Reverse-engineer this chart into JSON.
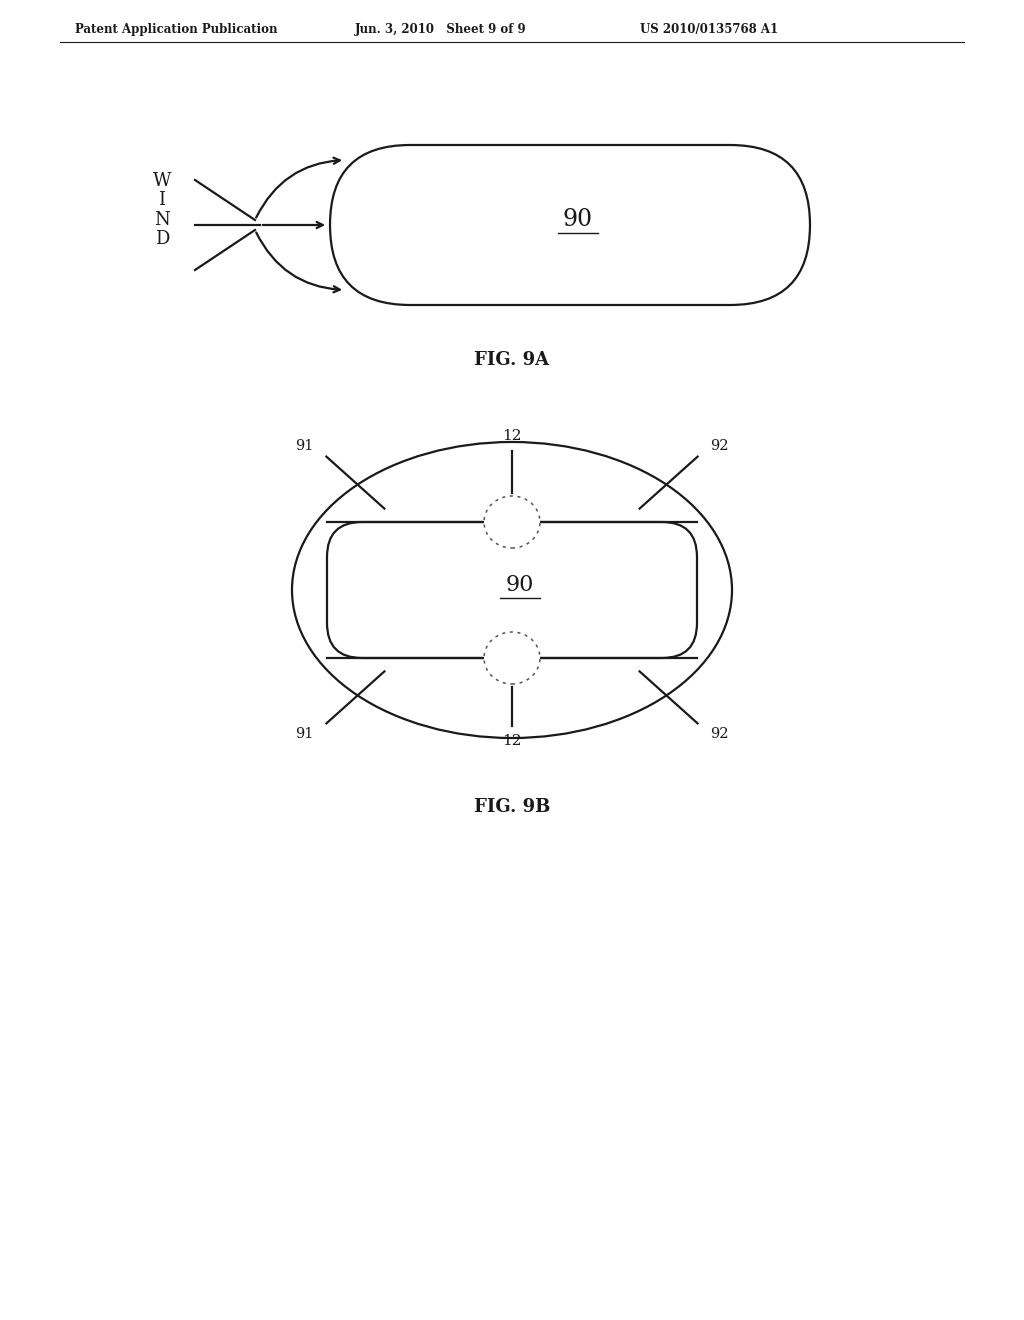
{
  "bg_color": "#ffffff",
  "line_color": "#1a1a1a",
  "header_text": "Patent Application Publication",
  "header_date": "Jun. 3, 2010   Sheet 9 of 9",
  "header_patent": "US 2010/0135768 A1",
  "fig9a_label": "FIG. 9A",
  "fig9b_label": "FIG. 9B",
  "label_90": "90",
  "label_91": "91",
  "label_92": "92",
  "label_12": "12",
  "label_wind": "W\nI\nN\nD"
}
